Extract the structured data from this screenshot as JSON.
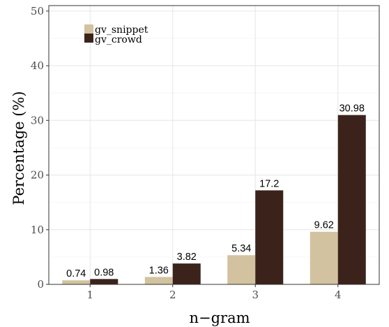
{
  "chart_data": {
    "type": "bar",
    "categories": [
      "1",
      "2",
      "3",
      "4"
    ],
    "series": [
      {
        "name": "gv_snippet",
        "values": [
          0.74,
          1.36,
          5.34,
          9.62
        ],
        "labels": [
          "0.74",
          "1.36",
          "5.34",
          "9.62"
        ],
        "color": "#d2c29f"
      },
      {
        "name": "gv_crowd",
        "values": [
          0.98,
          3.82,
          17.2,
          30.98
        ],
        "labels": [
          "0.98",
          "3.82",
          "17.2",
          "30.98"
        ],
        "color": "#3b231b"
      }
    ],
    "title": "",
    "xlabel": "n−gram",
    "ylabel": "Percentage (%)",
    "ylim": [
      0,
      51
    ],
    "yticks": [
      0,
      10,
      20,
      30,
      40,
      50
    ],
    "ytick_labels": [
      "0",
      "10",
      "20",
      "30",
      "40",
      "50"
    ],
    "grid": true,
    "legend_position": "top-left",
    "colors": {
      "grid_major": "#e6e6e6",
      "grid_minor": "#f4f4f4",
      "panel_border": "#333333"
    }
  }
}
